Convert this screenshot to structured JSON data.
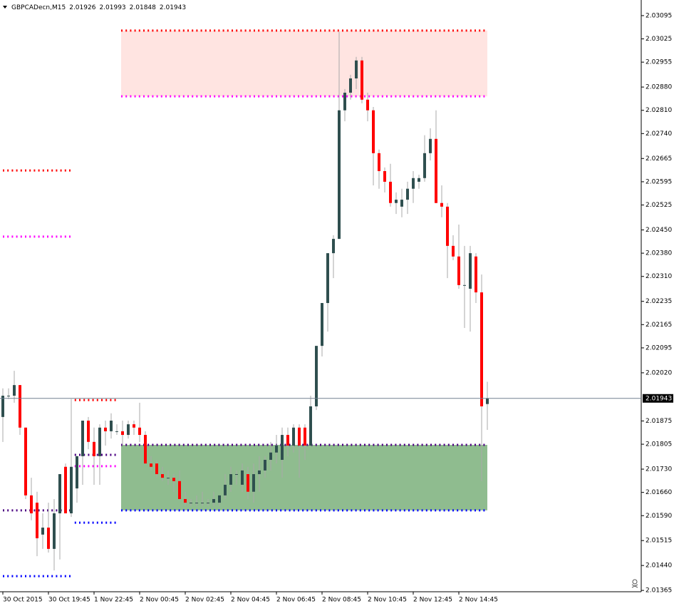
{
  "chart_data": {
    "type": "candlestick",
    "title": "GBPCADecn,M15",
    "open": [
      2.01887,
      2.01951,
      2.01951,
      2.01983,
      2.01855,
      2.01651,
      2.01629,
      2.01533,
      2.01554,
      2.0149,
      2.01597,
      2.01737,
      2.01597,
      2.01672,
      2.01769,
      2.01876,
      2.01812,
      2.01769,
      2.01855,
      2.01844,
      2.01844,
      2.01844,
      2.01833,
      2.01865,
      2.01855,
      2.01833,
      2.01747,
      2.01747,
      2.01715,
      2.01704,
      2.01704,
      2.01694,
      2.0164,
      2.01629,
      2.01629,
      2.01629,
      2.01629,
      2.01629,
      2.01629,
      2.01651,
      2.01683,
      2.01715,
      2.01683,
      2.01715,
      2.01662,
      2.01715,
      2.01726,
      2.01758,
      2.0178,
      2.01758,
      2.01833,
      2.01801,
      2.01855,
      2.01855,
      2.01801,
      2.01919,
      2.02101,
      2.0223,
      2.0238,
      2.02423,
      2.0281,
      2.02863,
      2.02906,
      2.0296,
      2.02842,
      2.0281,
      2.02681,
      2.02627,
      2.02595,
      2.02531,
      2.0252,
      2.02541,
      2.02574,
      2.02595,
      2.02606,
      2.02681,
      2.02724,
      2.02531,
      2.0252,
      2.02402,
      2.0237,
      2.02284,
      2.02273,
      2.0237,
      2.02262,
      2.01926
    ],
    "high": [
      2.01973,
      2.01973,
      2.02026,
      2.01983,
      2.01855,
      2.01704,
      2.01662,
      2.01597,
      2.01629,
      2.0164,
      2.01715,
      2.01747,
      2.01941,
      2.01769,
      2.01876,
      2.01887,
      2.01855,
      2.01865,
      2.01876,
      2.01898,
      2.01865,
      2.01876,
      2.01876,
      2.01876,
      2.0193,
      2.01844,
      2.01769,
      2.01758,
      2.01737,
      2.01726,
      2.01715,
      2.01726,
      2.01662,
      2.0164,
      2.01651,
      2.01662,
      2.0164,
      2.01662,
      2.01651,
      2.01715,
      2.01737,
      2.01726,
      2.01747,
      2.01737,
      2.01747,
      2.01769,
      2.01769,
      2.01812,
      2.01833,
      2.01855,
      2.01855,
      2.01865,
      2.01865,
      2.01865,
      2.01951,
      2.02101,
      2.0223,
      2.0238,
      2.02434,
      2.03046,
      2.02874,
      2.02917,
      2.02971,
      2.02971,
      2.02863,
      2.0282,
      2.02692,
      2.02638,
      2.02649,
      2.02563,
      2.02574,
      2.02595,
      2.02627,
      2.02616,
      2.02735,
      2.02756,
      2.0281,
      2.02584,
      2.02531,
      2.02434,
      2.02466,
      2.02402,
      2.02402,
      2.0238,
      2.02316,
      2.01993
    ],
    "low": [
      2.01812,
      2.01941,
      2.0193,
      2.01833,
      2.0164,
      2.01576,
      2.01468,
      2.0149,
      2.01479,
      2.01425,
      2.01458,
      2.01597,
      2.01586,
      2.01629,
      2.01683,
      2.0179,
      2.01683,
      2.01683,
      2.01801,
      2.01822,
      2.01833,
      2.01801,
      2.01822,
      2.01833,
      2.01812,
      2.01747,
      2.01726,
      2.01704,
      2.01694,
      2.01683,
      2.01662,
      2.0164,
      2.01619,
      2.01619,
      2.01619,
      2.01619,
      2.01619,
      2.01619,
      2.01619,
      2.0164,
      2.01662,
      2.01683,
      2.01662,
      2.0164,
      2.01629,
      2.01662,
      2.01704,
      2.01726,
      2.01747,
      2.01704,
      2.01769,
      2.0178,
      2.01704,
      2.01758,
      2.01801,
      2.01908,
      2.02069,
      2.02144,
      2.02305,
      2.02423,
      2.02777,
      2.02842,
      2.02874,
      2.02831,
      2.02777,
      2.02584,
      2.02574,
      2.02563,
      2.0252,
      2.02498,
      2.02488,
      2.02498,
      2.02531,
      2.02574,
      2.02595,
      2.02659,
      2.02531,
      2.02488,
      2.02305,
      2.02359,
      2.02273,
      2.02155,
      2.02144,
      2.0223,
      2.01694,
      2.01848
    ],
    "close": [
      2.01951,
      2.01951,
      2.01983,
      2.01855,
      2.01651,
      2.01597,
      2.01522,
      2.01554,
      2.0149,
      2.01597,
      2.01715,
      2.01597,
      2.01737,
      2.01769,
      2.01876,
      2.01812,
      2.01769,
      2.01855,
      2.01844,
      2.01876,
      2.01844,
      2.01833,
      2.01865,
      2.01855,
      2.01833,
      2.01747,
      2.01737,
      2.01715,
      2.01704,
      2.01704,
      2.01694,
      2.0164,
      2.01629,
      2.01629,
      2.01629,
      2.01629,
      2.01629,
      2.0164,
      2.01651,
      2.01683,
      2.01715,
      2.01715,
      2.01726,
      2.01662,
      2.01715,
      2.01726,
      2.01758,
      2.0178,
      2.01801,
      2.01833,
      2.01801,
      2.01855,
      2.01801,
      2.01801,
      2.01919,
      2.02101,
      2.0223,
      2.0238,
      2.02423,
      2.0281,
      2.02863,
      2.02906,
      2.0296,
      2.02842,
      2.0281,
      2.02681,
      2.02627,
      2.02595,
      2.02531,
      2.02541,
      2.02541,
      2.02574,
      2.02606,
      2.02606,
      2.02681,
      2.02724,
      2.02531,
      2.0252,
      2.02402,
      2.0237,
      2.02284,
      2.02284,
      2.0238,
      2.02262,
      2.01919,
      2.01943
    ],
    "colors": {
      "up": "#2f4f4f",
      "down": "#ff0000",
      "wick": "#a9a9a9"
    },
    "xlim": [
      -0.5,
      112
    ],
    "xticks": [
      {
        "value": 0,
        "label": "30 Oct 2015"
      },
      {
        "value": 8,
        "label": "30 Oct 19:45"
      },
      {
        "value": 16,
        "label": "1 Nov 22:45"
      },
      {
        "value": 24,
        "label": "2 Nov 00:45"
      },
      {
        "value": 32,
        "label": "2 Nov 02:45"
      },
      {
        "value": 40,
        "label": "2 Nov 04:45"
      },
      {
        "value": 48,
        "label": "2 Nov 06:45"
      },
      {
        "value": 56,
        "label": "2 Nov 08:45"
      },
      {
        "value": 64,
        "label": "2 Nov 10:45"
      },
      {
        "value": 72,
        "label": "2 Nov 12:45"
      },
      {
        "value": 80,
        "label": "2 Nov 14:45"
      }
    ],
    "ylim": [
      2.01361,
      2.03142
    ],
    "yticks": [
      2.03095,
      2.03025,
      2.02955,
      {
        "value": 2.0288,
        "label": "2.02880"
      },
      {
        "value": 2.0281,
        "label": "2.02810"
      },
      {
        "value": 2.0274,
        "label": "2.02740"
      },
      2.02665,
      2.02595,
      2.02525,
      {
        "value": 2.0245,
        "label": "2.02450"
      },
      {
        "value": 2.0238,
        "label": "2.02380"
      },
      {
        "value": 2.0231,
        "label": "2.02310"
      },
      2.02235,
      2.02165,
      2.02095,
      {
        "value": 2.0202,
        "label": "2.02020"
      },
      2.01875,
      2.01805,
      {
        "value": 2.0173,
        "label": "2.01730"
      },
      {
        "value": 2.0166,
        "label": "2.01660"
      },
      {
        "value": 2.0159,
        "label": "2.01590"
      },
      2.01515,
      {
        "value": 2.0144,
        "label": "2.01440"
      },
      2.01365
    ],
    "grid": false,
    "zones": [
      {
        "top": 2.0305,
        "bottom": 2.02852,
        "start": 20.75,
        "end": 85,
        "fill": "#ffe4e1",
        "top_color": "#ff0000",
        "bottom_color": "#ff00ff"
      },
      {
        "top": 2.01803,
        "bottom": 2.01606,
        "start": 20.75,
        "end": 85,
        "fill": "#8fbc8f",
        "top_color": "#4b0082",
        "bottom_color": "#0000ff"
      }
    ],
    "levels": [
      {
        "value": 2.02629,
        "start": 0,
        "end": 12,
        "color": "#ff0000"
      },
      {
        "value": 2.0243,
        "start": 0,
        "end": 12,
        "color": "#ff00ff"
      },
      {
        "value": 2.01606,
        "start": 0,
        "end": 12,
        "color": "#4b0082"
      },
      {
        "value": 2.01408,
        "start": 0,
        "end": 12,
        "color": "#0000ff"
      },
      {
        "value": 2.01938,
        "start": 12.6,
        "end": 20,
        "color": "#ff0000"
      },
      {
        "value": 2.01773,
        "start": 12.6,
        "end": 20,
        "color": "#4b0082"
      },
      {
        "value": 2.01739,
        "start": 12.6,
        "end": 20,
        "color": "#ff00ff"
      },
      {
        "value": 2.01569,
        "start": 12.6,
        "end": 20,
        "color": "#0000ff"
      }
    ]
  }
}
